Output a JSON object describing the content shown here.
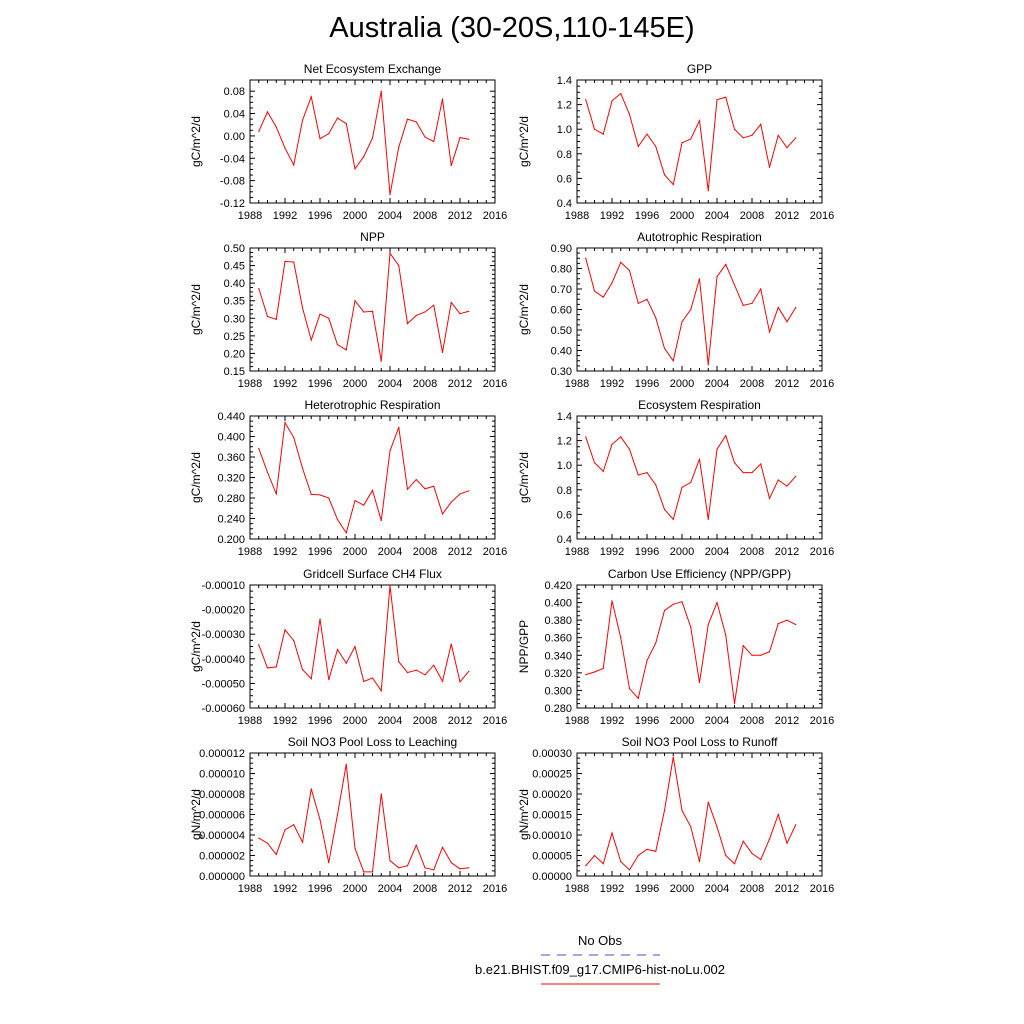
{
  "title": "Australia (30-20S,110-145E)",
  "colors": {
    "model_line": "#ff0000",
    "obs_line": "#4b4bd8",
    "axis": "#000000"
  },
  "legend": {
    "obs_label": "No Obs",
    "model_label": "b.e21.BHIST.f09_g17.CMIP6-hist-noLu.002"
  },
  "chart_data": [
    {
      "type": "line",
      "title": "Net Ecosystem Exchange",
      "ylabel": "gC/m^2/d",
      "xlim": [
        1988,
        2016
      ],
      "xticks": [
        1988,
        1992,
        1996,
        2000,
        2004,
        2008,
        2012,
        2016
      ],
      "ylim": [
        -0.12,
        0.1
      ],
      "yticks": [
        -0.12,
        -0.08,
        -0.04,
        0.0,
        0.04,
        0.08
      ],
      "ytick_labels": [
        "-0.12",
        "-0.08",
        "-0.04",
        "0.00",
        "0.04",
        "0.08"
      ],
      "x": [
        1989,
        1990,
        1991,
        1992,
        1993,
        1994,
        1995,
        1996,
        1997,
        1998,
        1999,
        2000,
        2001,
        2002,
        2003,
        2004,
        2005,
        2006,
        2007,
        2008,
        2009,
        2010,
        2011,
        2012,
        2013
      ],
      "values": [
        0.008,
        0.043,
        0.016,
        -0.022,
        -0.052,
        0.028,
        0.07,
        -0.005,
        0.004,
        0.032,
        0.022,
        -0.059,
        -0.037,
        -0.004,
        0.08,
        -0.105,
        -0.02,
        0.03,
        0.025,
        -0.002,
        -0.01,
        0.066,
        -0.053,
        -0.003,
        -0.006
      ]
    },
    {
      "type": "line",
      "title": "GPP",
      "ylabel": "gC/m^2/d",
      "xlim": [
        1988,
        2016
      ],
      "xticks": [
        1988,
        1992,
        1996,
        2000,
        2004,
        2008,
        2012,
        2016
      ],
      "ylim": [
        0.4,
        1.4
      ],
      "yticks": [
        0.4,
        0.6,
        0.8,
        1.0,
        1.2,
        1.4
      ],
      "ytick_labels": [
        "0.4",
        "0.6",
        "0.8",
        "1.0",
        "1.2",
        "1.4"
      ],
      "x": [
        1989,
        1990,
        1991,
        1992,
        1993,
        1994,
        1995,
        1996,
        1997,
        1998,
        1999,
        2000,
        2001,
        2002,
        2003,
        2004,
        2005,
        2006,
        2007,
        2008,
        2009,
        2010,
        2011,
        2012,
        2013
      ],
      "values": [
        1.24,
        1.0,
        0.96,
        1.23,
        1.29,
        1.12,
        0.86,
        0.96,
        0.86,
        0.63,
        0.55,
        0.89,
        0.92,
        1.07,
        0.5,
        1.24,
        1.26,
        1.0,
        0.93,
        0.95,
        1.04,
        0.69,
        0.95,
        0.85,
        0.93
      ]
    },
    {
      "type": "line",
      "title": "NPP",
      "ylabel": "gC/m^2/d",
      "xlim": [
        1988,
        2016
      ],
      "xticks": [
        1988,
        1992,
        1996,
        2000,
        2004,
        2008,
        2012,
        2016
      ],
      "ylim": [
        0.15,
        0.5
      ],
      "yticks": [
        0.15,
        0.2,
        0.25,
        0.3,
        0.35,
        0.4,
        0.45,
        0.5
      ],
      "ytick_labels": [
        "0.15",
        "0.20",
        "0.25",
        "0.30",
        "0.35",
        "0.40",
        "0.45",
        "0.50"
      ],
      "x": [
        1989,
        1990,
        1991,
        1992,
        1993,
        1994,
        1995,
        1996,
        1997,
        1998,
        1999,
        2000,
        2001,
        2002,
        2003,
        2004,
        2005,
        2006,
        2007,
        2008,
        2009,
        2010,
        2011,
        2012,
        2013
      ],
      "values": [
        0.385,
        0.305,
        0.297,
        0.462,
        0.46,
        0.33,
        0.238,
        0.312,
        0.3,
        0.225,
        0.21,
        0.35,
        0.318,
        0.32,
        0.178,
        0.485,
        0.45,
        0.285,
        0.308,
        0.318,
        0.337,
        0.203,
        0.345,
        0.313,
        0.32
      ]
    },
    {
      "type": "line",
      "title": "Autotrophic Respiration",
      "ylabel": "gC/m^2/d",
      "xlim": [
        1988,
        2016
      ],
      "xticks": [
        1988,
        1992,
        1996,
        2000,
        2004,
        2008,
        2012,
        2016
      ],
      "ylim": [
        0.3,
        0.9
      ],
      "yticks": [
        0.3,
        0.4,
        0.5,
        0.6,
        0.7,
        0.8,
        0.9
      ],
      "ytick_labels": [
        "0.30",
        "0.40",
        "0.50",
        "0.60",
        "0.70",
        "0.80",
        "0.90"
      ],
      "x": [
        1989,
        1990,
        1991,
        1992,
        1993,
        1994,
        1995,
        1996,
        1997,
        1998,
        1999,
        2000,
        2001,
        2002,
        2003,
        2004,
        2005,
        2006,
        2007,
        2008,
        2009,
        2010,
        2011,
        2012,
        2013
      ],
      "values": [
        0.85,
        0.69,
        0.66,
        0.73,
        0.83,
        0.79,
        0.63,
        0.65,
        0.56,
        0.41,
        0.35,
        0.54,
        0.6,
        0.75,
        0.33,
        0.76,
        0.82,
        0.72,
        0.62,
        0.63,
        0.7,
        0.49,
        0.61,
        0.54,
        0.61
      ]
    },
    {
      "type": "line",
      "title": "Heterotrophic Respiration",
      "ylabel": "gC/m^2/d",
      "xlim": [
        1988,
        2016
      ],
      "xticks": [
        1988,
        1992,
        1996,
        2000,
        2004,
        2008,
        2012,
        2016
      ],
      "ylim": [
        0.2,
        0.44
      ],
      "yticks": [
        0.2,
        0.24,
        0.28,
        0.32,
        0.36,
        0.4,
        0.44
      ],
      "ytick_labels": [
        "0.200",
        "0.240",
        "0.280",
        "0.320",
        "0.360",
        "0.400",
        "0.440"
      ],
      "x": [
        1989,
        1990,
        1991,
        1992,
        1993,
        1994,
        1995,
        1996,
        1997,
        1998,
        1999,
        2000,
        2001,
        2002,
        2003,
        2004,
        2005,
        2006,
        2007,
        2008,
        2009,
        2010,
        2011,
        2012,
        2013
      ],
      "values": [
        0.377,
        0.33,
        0.288,
        0.427,
        0.398,
        0.338,
        0.287,
        0.286,
        0.28,
        0.238,
        0.212,
        0.275,
        0.266,
        0.295,
        0.236,
        0.372,
        0.418,
        0.297,
        0.316,
        0.298,
        0.303,
        0.249,
        0.272,
        0.288,
        0.294
      ]
    },
    {
      "type": "line",
      "title": "Ecosystem Respiration",
      "ylabel": "gC/m^2/d",
      "xlim": [
        1988,
        2016
      ],
      "xticks": [
        1988,
        1992,
        1996,
        2000,
        2004,
        2008,
        2012,
        2016
      ],
      "ylim": [
        0.4,
        1.4
      ],
      "yticks": [
        0.4,
        0.6,
        0.8,
        1.0,
        1.2,
        1.4
      ],
      "ytick_labels": [
        "0.4",
        "0.6",
        "0.8",
        "1.0",
        "1.2",
        "1.4"
      ],
      "x": [
        1989,
        1990,
        1991,
        1992,
        1993,
        1994,
        1995,
        1996,
        1997,
        1998,
        1999,
        2000,
        2001,
        2002,
        2003,
        2004,
        2005,
        2006,
        2007,
        2008,
        2009,
        2010,
        2011,
        2012,
        2013
      ],
      "values": [
        1.23,
        1.02,
        0.95,
        1.17,
        1.23,
        1.13,
        0.92,
        0.94,
        0.84,
        0.64,
        0.56,
        0.82,
        0.86,
        1.05,
        0.56,
        1.13,
        1.24,
        1.02,
        0.94,
        0.94,
        1.01,
        0.73,
        0.88,
        0.83,
        0.91
      ]
    },
    {
      "type": "line",
      "title": "Gridcell Surface CH4 Flux",
      "ylabel": "gC/m^2/d",
      "xlim": [
        1988,
        2016
      ],
      "xticks": [
        1988,
        1992,
        1996,
        2000,
        2004,
        2008,
        2012,
        2016
      ],
      "ylim": [
        -0.0006,
        -0.0001
      ],
      "yticks": [
        -0.0006,
        -0.0005,
        -0.0004,
        -0.0003,
        -0.0002,
        -0.0001
      ],
      "ytick_labels": [
        "-0.00060",
        "-0.00050",
        "-0.00040",
        "-0.00030",
        "-0.00020",
        "-0.00010"
      ],
      "x": [
        1989,
        1990,
        1991,
        1992,
        1993,
        1994,
        1995,
        1996,
        1997,
        1998,
        1999,
        2000,
        2001,
        2002,
        2003,
        2004,
        2005,
        2006,
        2007,
        2008,
        2009,
        2010,
        2011,
        2012,
        2013
      ],
      "values": [
        -0.000343,
        -0.000437,
        -0.000433,
        -0.000282,
        -0.000326,
        -0.000444,
        -0.000481,
        -0.000238,
        -0.000485,
        -0.000362,
        -0.000418,
        -0.00035,
        -0.000492,
        -0.000478,
        -0.00053,
        -0.000103,
        -0.000412,
        -0.000456,
        -0.000446,
        -0.000465,
        -0.000426,
        -0.000491,
        -0.00034,
        -0.000494,
        -0.000451
      ]
    },
    {
      "type": "line",
      "title": "Carbon Use Efficiency (NPP/GPP)",
      "ylabel": "NPP/GPP",
      "xlim": [
        1988,
        2016
      ],
      "xticks": [
        1988,
        1992,
        1996,
        2000,
        2004,
        2008,
        2012,
        2016
      ],
      "ylim": [
        0.28,
        0.42
      ],
      "yticks": [
        0.28,
        0.3,
        0.32,
        0.34,
        0.36,
        0.38,
        0.4,
        0.42
      ],
      "ytick_labels": [
        "0.280",
        "0.300",
        "0.320",
        "0.340",
        "0.360",
        "0.380",
        "0.400",
        "0.420"
      ],
      "x": [
        1989,
        1990,
        1991,
        1992,
        1993,
        1994,
        1995,
        1996,
        1997,
        1998,
        1999,
        2000,
        2001,
        2002,
        2003,
        2004,
        2005,
        2006,
        2007,
        2008,
        2009,
        2010,
        2011,
        2012,
        2013
      ],
      "values": [
        0.318,
        0.321,
        0.325,
        0.402,
        0.36,
        0.302,
        0.291,
        0.334,
        0.354,
        0.391,
        0.398,
        0.401,
        0.372,
        0.309,
        0.375,
        0.4,
        0.363,
        0.285,
        0.351,
        0.34,
        0.34,
        0.344,
        0.376,
        0.38,
        0.375
      ]
    },
    {
      "type": "line",
      "title": "Soil NO3 Pool Loss to Leaching",
      "ylabel": "gN/m^2/d",
      "xlim": [
        1988,
        2016
      ],
      "xticks": [
        1988,
        1992,
        1996,
        2000,
        2004,
        2008,
        2012,
        2016
      ],
      "ylim": [
        0.0,
        1.2e-05
      ],
      "yticks": [
        0.0,
        2e-06,
        4e-06,
        6e-06,
        8e-06,
        1e-05,
        1.2e-05
      ],
      "ytick_labels": [
        "0.000000",
        "0.000002",
        "0.000004",
        "0.000006",
        "0.000008",
        "0.000010",
        "0.000012"
      ],
      "x": [
        1989,
        1990,
        1991,
        1992,
        1993,
        1994,
        1995,
        1996,
        1997,
        1998,
        1999,
        2000,
        2001,
        2002,
        2003,
        2004,
        2005,
        2006,
        2007,
        2008,
        2009,
        2010,
        2011,
        2012,
        2013
      ],
      "values": [
        3.7e-06,
        3.2e-06,
        2.1e-06,
        4.5e-06,
        5e-06,
        3.3e-06,
        8.5e-06,
        5.5e-06,
        1.3e-06,
        6e-06,
        1.09e-05,
        2.7e-06,
        4e-07,
        4e-07,
        8e-06,
        1.5e-06,
        8e-07,
        1e-06,
        3e-06,
        8e-07,
        6e-07,
        2.8e-06,
        1.3e-06,
        7e-07,
        8e-07
      ]
    },
    {
      "type": "line",
      "title": "Soil NO3 Pool Loss to Runoff",
      "ylabel": "gN/m^2/d",
      "xlim": [
        1988,
        2016
      ],
      "xticks": [
        1988,
        1992,
        1996,
        2000,
        2004,
        2008,
        2012,
        2016
      ],
      "ylim": [
        0.0,
        0.0003
      ],
      "yticks": [
        0.0,
        5e-05,
        0.0001,
        0.00015,
        0.0002,
        0.00025,
        0.0003
      ],
      "ytick_labels": [
        "0.00000",
        "0.00005",
        "0.00010",
        "0.00015",
        "0.00020",
        "0.00025",
        "0.00030"
      ],
      "x": [
        1989,
        1990,
        1991,
        1992,
        1993,
        1994,
        1995,
        1996,
        1997,
        1998,
        1999,
        2000,
        2001,
        2002,
        2003,
        2004,
        2005,
        2006,
        2007,
        2008,
        2009,
        2010,
        2011,
        2012,
        2013
      ],
      "values": [
        2.5e-05,
        5e-05,
        3e-05,
        0.000105,
        3.5e-05,
        1.5e-05,
        5e-05,
        6.5e-05,
        6e-05,
        0.00016,
        0.00029,
        0.00016,
        0.00012,
        3.5e-05,
        0.00018,
        0.00012,
        5e-05,
        3e-05,
        8.5e-05,
        5.5e-05,
        4e-05,
        9e-05,
        0.00015,
        8e-05,
        0.000125
      ]
    }
  ]
}
